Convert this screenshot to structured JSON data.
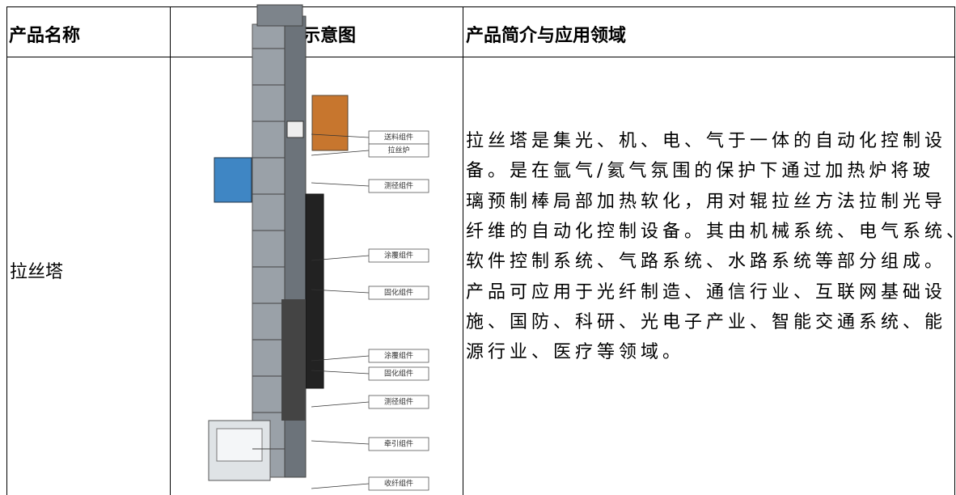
{
  "table": {
    "header": [
      "产品名称",
      "产品示意图",
      "产品简介与应用领域"
    ],
    "rows": [
      {
        "name": "拉丝塔",
        "diagram_labels": [
          "送料组件",
          "拉丝炉",
          "测径组件",
          "涂覆组件",
          "固化组件",
          "涂覆组件",
          "固化组件",
          "测径组件",
          "牵引组件",
          "收纤组件"
        ],
        "description": [
          "拉丝塔是集光、机、电、气于一体的自动化控制设",
          "备。是在氩气/氦气氛围的保护下通过加热炉将玻",
          "璃预制棒局部加热软化，用对辊拉丝方法拉制光导",
          "纤维的自动化控制设备。其由机械系统、电气系统、",
          "软件控制系统、气路系统、水路系统等部分组成。",
          "产品可应用于光纤制造、通信行业、互联网基础设",
          "施、国防、科研、光电子产业、智能交通系统、能",
          "源行业、医疗等领域。"
        ]
      }
    ]
  }
}
